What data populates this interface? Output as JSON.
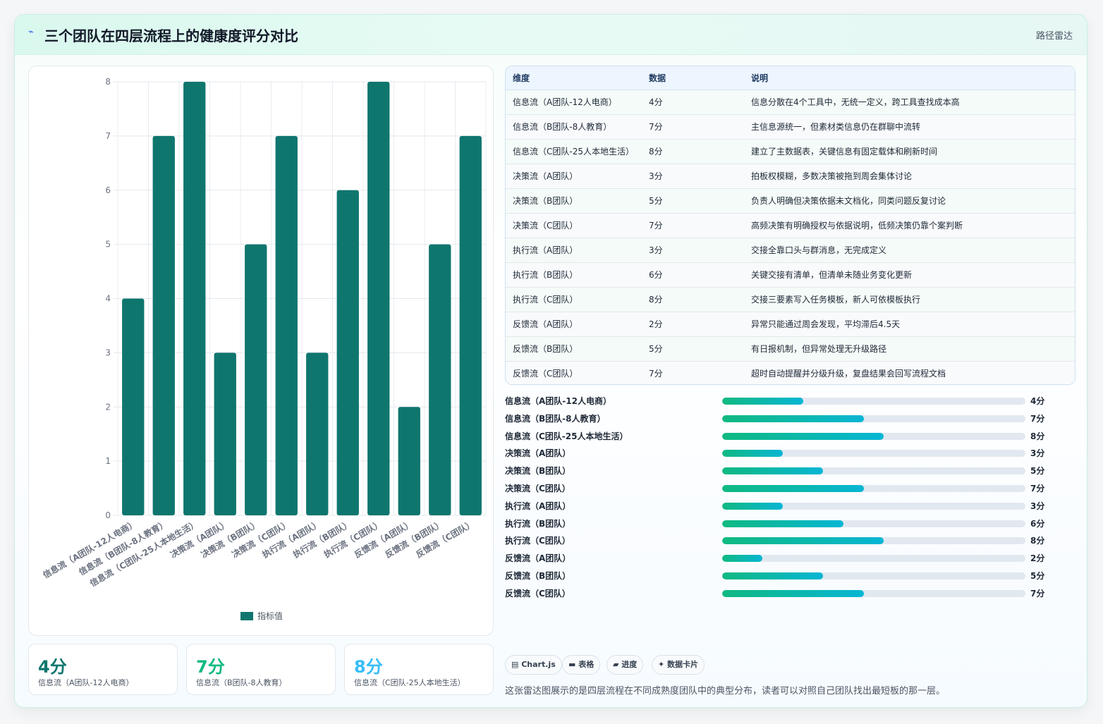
{
  "header": {
    "icon": "pulse-icon",
    "title": "三个团队在四层流程上的健康度评分对比",
    "tag": "路径雷达"
  },
  "chart_data": {
    "type": "bar",
    "categories": [
      "信息流（A团队-12人电商）",
      "信息流（B团队-8人教育）",
      "信息流（C团队-25人本地生活）",
      "决策流（A团队）",
      "决策流（B团队）",
      "决策流（C团队）",
      "执行流（A团队）",
      "执行流（B团队）",
      "执行流（C团队）",
      "反馈流（A团队）",
      "反馈流（B团队）",
      "反馈流（C团队）"
    ],
    "series": [
      {
        "name": "指标值",
        "values": [
          4,
          7,
          8,
          3,
          5,
          7,
          3,
          6,
          8,
          2,
          5,
          7
        ]
      }
    ],
    "ylim": [
      0,
      8
    ],
    "yticks": [
      0,
      1,
      2,
      3,
      4,
      5,
      6,
      7,
      8
    ],
    "grid": true,
    "legend_position": "bottom",
    "bar_color": "#0f766e"
  },
  "table": {
    "headers": [
      "维度",
      "数据",
      "说明"
    ],
    "rows": [
      [
        "信息流（A团队-12人电商）",
        "4分",
        "信息分散在4个工具中，无统一定义，跨工具查找成本高"
      ],
      [
        "信息流（B团队-8人教育）",
        "7分",
        "主信息源统一，但素材类信息仍在群聊中流转"
      ],
      [
        "信息流（C团队-25人本地生活）",
        "8分",
        "建立了主数据表，关键信息有固定载体和刷新时间"
      ],
      [
        "决策流（A团队）",
        "3分",
        "拍板权模糊，多数决策被拖到周会集体讨论"
      ],
      [
        "决策流（B团队）",
        "5分",
        "负责人明确但决策依据未文档化，同类问题反复讨论"
      ],
      [
        "决策流（C团队）",
        "7分",
        "高频决策有明确授权与依据说明，低频决策仍靠个案判断"
      ],
      [
        "执行流（A团队）",
        "3分",
        "交接全靠口头与群消息，无完成定义"
      ],
      [
        "执行流（B团队）",
        "6分",
        "关键交接有清单，但清单未随业务变化更新"
      ],
      [
        "执行流（C团队）",
        "8分",
        "交接三要素写入任务模板，新人可依模板执行"
      ],
      [
        "反馈流（A团队）",
        "2分",
        "异常只能通过周会发现，平均滞后4.5天"
      ],
      [
        "反馈流（B团队）",
        "5分",
        "有日报机制，但异常处理无升级路径"
      ],
      [
        "反馈流（C团队）",
        "7分",
        "超时自动提醒并分级升级，复盘结果会回写流程文档"
      ]
    ]
  },
  "progress": {
    "max": 15,
    "items": [
      {
        "label": "信息流（A团队-12人电商）",
        "value": 4,
        "text": "4分"
      },
      {
        "label": "信息流（B团队-8人教育）",
        "value": 7,
        "text": "7分"
      },
      {
        "label": "信息流（C团队-25人本地生活）",
        "value": 8,
        "text": "8分"
      },
      {
        "label": "决策流（A团队）",
        "value": 3,
        "text": "3分"
      },
      {
        "label": "决策流（B团队）",
        "value": 5,
        "text": "5分"
      },
      {
        "label": "决策流（C团队）",
        "value": 7,
        "text": "7分"
      },
      {
        "label": "执行流（A团队）",
        "value": 3,
        "text": "3分"
      },
      {
        "label": "执行流（B团队）",
        "value": 6,
        "text": "6分"
      },
      {
        "label": "执行流（C团队）",
        "value": 8,
        "text": "8分"
      },
      {
        "label": "反馈流（A团队）",
        "value": 2,
        "text": "2分"
      },
      {
        "label": "反馈流（B团队）",
        "value": 5,
        "text": "5分"
      },
      {
        "label": "反馈流（C团队）",
        "value": 7,
        "text": "7分"
      }
    ]
  },
  "stats": [
    {
      "value": "4分",
      "label": "信息流（A团队-12人电商）",
      "color": "#0f766e"
    },
    {
      "value": "7分",
      "label": "信息流（B团队-8人教育）",
      "color": "#10b981"
    },
    {
      "value": "8分",
      "label": "信息流（C团队-25人本地生活）",
      "color": "#38bdf8"
    }
  ],
  "chips": [
    {
      "icon": "chart-icon",
      "glyph": "▤",
      "label": "Chart.js"
    },
    {
      "icon": "table-icon",
      "glyph": "▬",
      "label": "表格"
    },
    {
      "icon": "progress-icon",
      "glyph": "▰",
      "label": "进度"
    },
    {
      "icon": "sparkle-icon",
      "glyph": "✦",
      "label": "数据卡片"
    }
  ],
  "footnote": "这张雷达图展示的是四层流程在不同成熟度团队中的典型分布，读者可以对照自己团队找出最短板的那一层。"
}
